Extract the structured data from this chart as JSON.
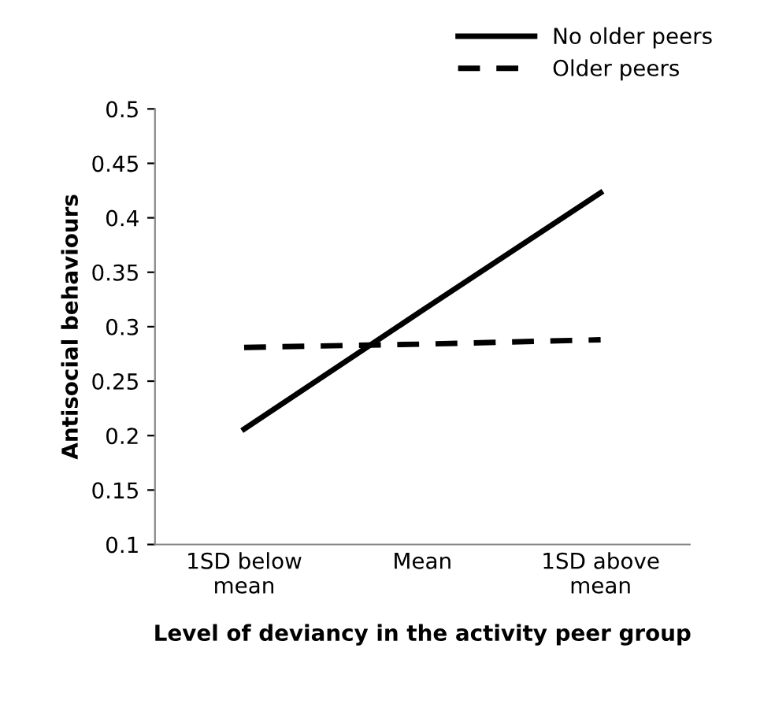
{
  "chart_data": {
    "type": "line",
    "xlabel": "Level of deviancy in the activity peer group",
    "ylabel": "Antisocial behaviours",
    "categories": [
      "1SD below\nmean",
      "Mean",
      "1SD above\nmean"
    ],
    "series": [
      {
        "name": "No older peers",
        "color": "#000000",
        "line_style": "solid",
        "values": [
          0.206,
          0.315,
          0.423
        ]
      },
      {
        "name": "Older peers",
        "color": "#000000",
        "line_style": "dashed",
        "values": [
          0.281,
          0.284,
          0.288
        ]
      }
    ],
    "ylim": [
      0.1,
      0.5
    ],
    "yticks": [
      0.1,
      0.15,
      0.2,
      0.25,
      0.3,
      0.35,
      0.4,
      0.45,
      0.5
    ],
    "grid": false,
    "legend": "top right",
    "marker": "none"
  }
}
